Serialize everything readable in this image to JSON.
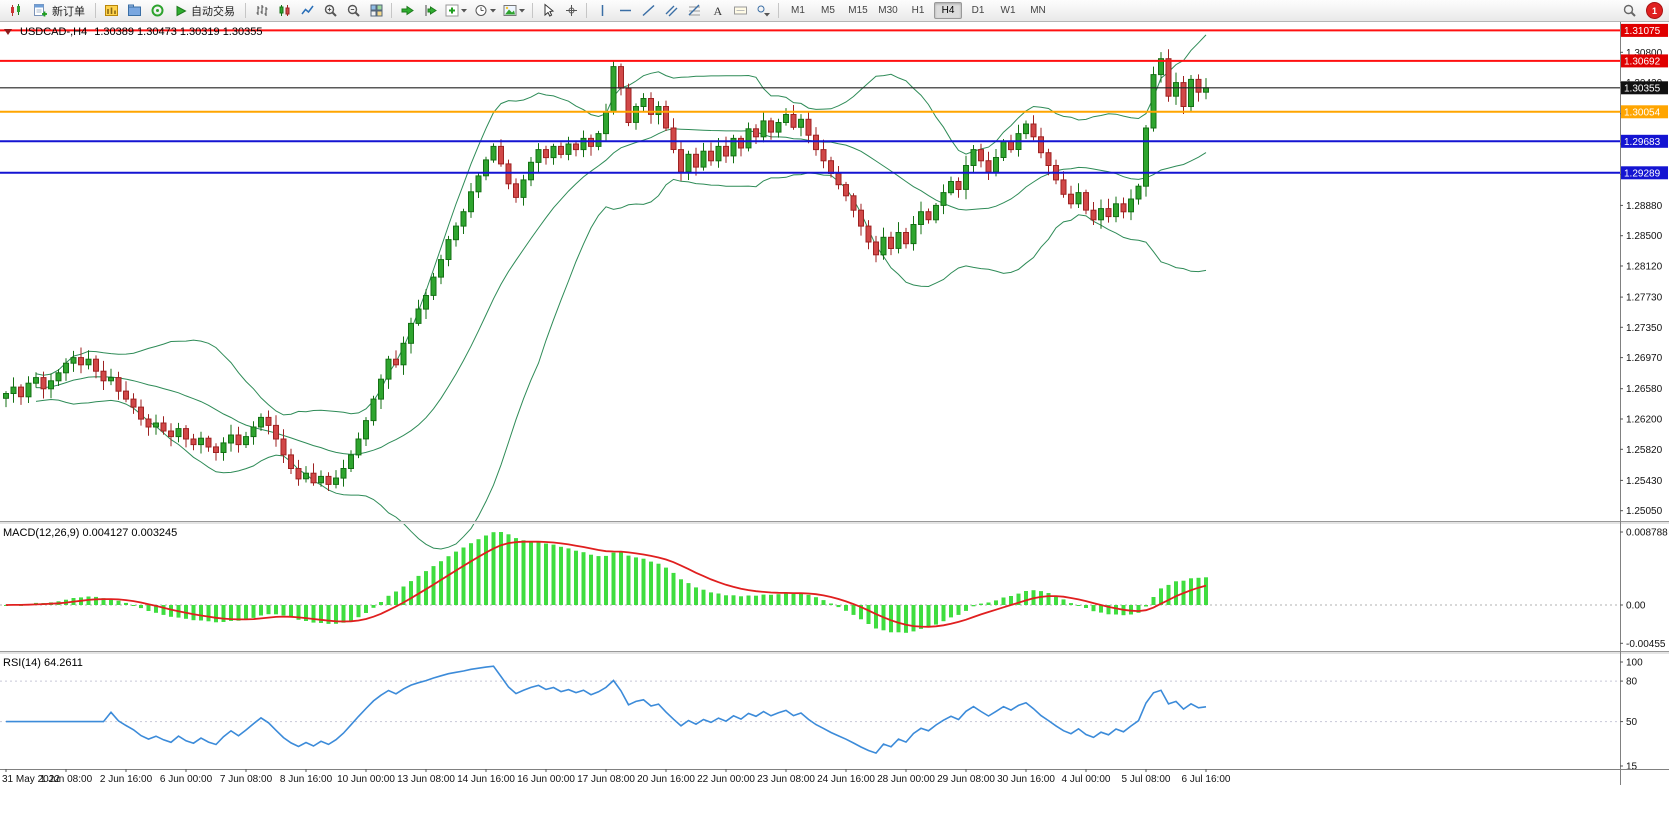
{
  "toolbar": {
    "new_order_label": "新订单",
    "autotrade_label": "自动交易",
    "timeframes": [
      "M1",
      "M5",
      "M15",
      "M30",
      "H1",
      "H4",
      "D1",
      "W1",
      "MN"
    ],
    "active_timeframe": "H4",
    "notification_badge": "1",
    "icon_names": [
      "app-icon",
      "new-order-icon",
      "new-chart-icon",
      "profiles-icon",
      "market-watch-icon",
      "autotrade-play-icon",
      "bar-chart-icon",
      "candlestick-chart-icon",
      "line-chart-icon",
      "zoom-in-icon",
      "zoom-out-icon",
      "tile-windows-icon",
      "auto-scroll-icon",
      "chart-shift-icon",
      "indicators-icon",
      "periods-icon",
      "templates-icon",
      "cursor-icon",
      "crosshair-icon",
      "vertical-line-icon",
      "horizontal-line-icon",
      "trendline-icon",
      "channel-icon",
      "fibonacci-icon",
      "text-icon",
      "text-label-icon",
      "objects-dropdown-icon",
      "search-icon",
      "notification-badge"
    ]
  },
  "main_chart": {
    "symbol_label": "USDCAD-,H4",
    "ohlc_label": "1.30389 1.30473 1.30319 1.30355"
  },
  "macd_panel": {
    "label": "MACD(12,26,9) 0.004127 0.003245"
  },
  "rsi_panel": {
    "label": "RSI(14) 64.2611"
  },
  "price_scale": {
    "ticks": [
      "1.30800",
      "1.30420",
      "1.30030",
      "1.29650",
      "1.29270",
      "1.28880",
      "1.28500",
      "1.28120",
      "1.27730",
      "1.27350",
      "1.26970",
      "1.26580",
      "1.26200",
      "1.25820",
      "1.25430",
      "1.25050"
    ]
  },
  "levels": [
    {
      "label": "1.31075",
      "value": 1.31075,
      "color": "#ff1010",
      "tag_bg": "#e00000"
    },
    {
      "label": "1.30692",
      "value": 1.30692,
      "color": "#ff1010",
      "tag_bg": "#e00000"
    },
    {
      "label": "1.30054",
      "value": 1.30054,
      "color": "#ffa500",
      "tag_bg": "#ffa500"
    },
    {
      "label": "1.29683",
      "value": 1.29683,
      "color": "#1414d2",
      "tag_bg": "#1414d2"
    },
    {
      "label": "1.29289",
      "value": 1.29289,
      "color": "#1414d2",
      "tag_bg": "#1414d2"
    }
  ],
  "current_price": {
    "label": "1.30355",
    "value": 1.30355
  },
  "macd_scale": [
    {
      "label": "0.008788",
      "value": 0.008788
    },
    {
      "label": "0.00",
      "value": 0
    },
    {
      "label": "-0.00455",
      "value": -0.00455
    }
  ],
  "rsi_scale": [
    {
      "label": "100",
      "value": 100
    },
    {
      "label": "80",
      "value": 80
    },
    {
      "label": "50",
      "value": 50
    },
    {
      "label": "15",
      "value": 15
    }
  ],
  "time_axis": [
    "31 May 2022",
    "1 Jun 08:00",
    "2 Jun 16:00",
    "6 Jun 00:00",
    "7 Jun 08:00",
    "8 Jun 16:00",
    "10 Jun 00:00",
    "13 Jun 08:00",
    "14 Jun 16:00",
    "16 Jun 00:00",
    "17 Jun 08:00",
    "20 Jun 16:00",
    "22 Jun 00:00",
    "23 Jun 08:00",
    "24 Jun 16:00",
    "28 Jun 00:00",
    "29 Jun 08:00",
    "30 Jun 16:00",
    "4 Jul 00:00",
    "5 Jul 08:00",
    "6 Jul 16:00"
  ],
  "chart_data": {
    "type": "candlestick+indicators",
    "symbol": "USDCAD-",
    "timeframe": "H4",
    "ohlc_current": {
      "open": 1.30389,
      "high": 1.30473,
      "low": 1.30319,
      "close": 1.30355
    },
    "price_axis_range": [
      1.24921,
      1.3118
    ],
    "bars_per_time_label": 8,
    "closes": [
      1.2652,
      1.266,
      1.2648,
      1.2665,
      1.2672,
      1.2658,
      1.2668,
      1.2678,
      1.269,
      1.2697,
      1.2688,
      1.2695,
      1.268,
      1.2668,
      1.2672,
      1.2655,
      1.2645,
      1.2635,
      1.262,
      1.261,
      1.2615,
      1.2605,
      1.2598,
      1.2608,
      1.2595,
      1.2588,
      1.2596,
      1.2585,
      1.2578,
      1.259,
      1.26,
      1.2588,
      1.2598,
      1.261,
      1.2622,
      1.2612,
      1.2595,
      1.2575,
      1.2558,
      1.2545,
      1.2552,
      1.254,
      1.2548,
      1.2538,
      1.2546,
      1.2558,
      1.2575,
      1.2595,
      1.2618,
      1.2645,
      1.267,
      1.2695,
      1.2688,
      1.2715,
      1.274,
      1.2758,
      1.2775,
      1.2798,
      1.282,
      1.2845,
      1.2862,
      1.288,
      1.2905,
      1.2925,
      1.2945,
      1.2962,
      1.294,
      1.2915,
      1.2898,
      1.292,
      1.2942,
      1.2958,
      1.2948,
      1.2962,
      1.2952,
      1.2965,
      1.2958,
      1.2972,
      1.2962,
      1.2978,
      1.3005,
      1.3062,
      1.3035,
      1.2992,
      1.3012,
      1.3022,
      1.3002,
      1.3012,
      1.2985,
      1.2958,
      1.293,
      1.2952,
      1.2936,
      1.2956,
      1.2944,
      1.2962,
      1.295,
      1.2972,
      1.296,
      1.2984,
      1.2974,
      1.2994,
      1.298,
      1.2992,
      1.3002,
      1.2986,
      1.2996,
      1.2976,
      1.2958,
      1.2944,
      1.2928,
      1.2914,
      1.29,
      1.2882,
      1.2862,
      1.2842,
      1.2826,
      1.2848,
      1.2834,
      1.2854,
      1.284,
      1.2864,
      1.288,
      1.287,
      1.2888,
      1.2904,
      1.2918,
      1.2908,
      1.2938,
      1.2958,
      1.2944,
      1.293,
      1.2948,
      1.2968,
      1.2958,
      1.2978,
      1.299,
      1.2974,
      1.2954,
      1.2938,
      1.292,
      1.2902,
      1.289,
      1.2904,
      1.2882,
      1.287,
      1.2884,
      1.2874,
      1.289,
      1.288,
      1.2896,
      1.2912,
      1.2985,
      1.3052,
      1.3072,
      1.3025,
      1.3042,
      1.3012,
      1.3046,
      1.303,
      1.30355
    ],
    "indicators": {
      "bollinger": {
        "period": 20,
        "deviation": 2
      },
      "macd": {
        "fast": 12,
        "slow": 26,
        "signal": 9,
        "current_macd": 0.004127,
        "current_signal": 0.003245
      },
      "rsi": {
        "period": 14,
        "current": 64.2611
      }
    },
    "colors": {
      "up": "#2fa52f",
      "up_border": "#147014",
      "down": "#d14848",
      "down_border": "#9e2222",
      "bands": "#2e8b57",
      "macd_hist": "#3fdd3f",
      "macd_signal": "#e01f1f",
      "rsi_line": "#3c8bd9"
    }
  }
}
